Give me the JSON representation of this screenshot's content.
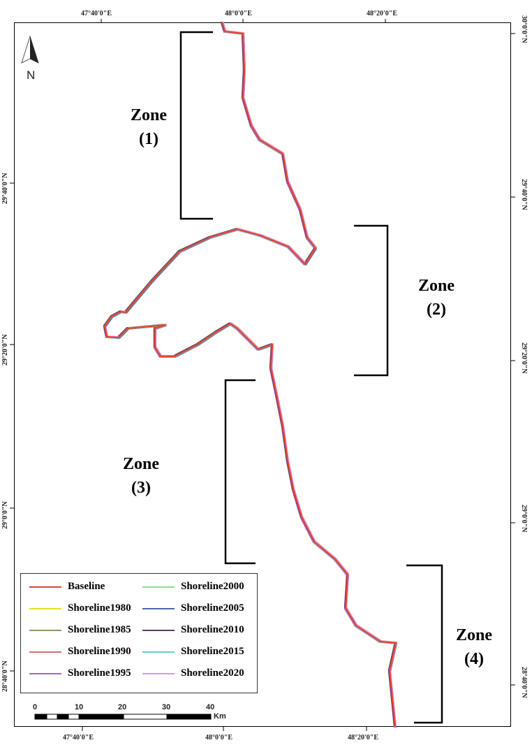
{
  "axes": {
    "top": [
      "47°40'0\"E",
      "48°0'0\"E",
      "48°20'0\"E"
    ],
    "bottom": [
      "47°40'0\"E",
      "48°0'0\"E",
      "48°20'0\"E"
    ],
    "right": [
      "30°0'0\"N",
      "29°40'0\"N",
      "29°20'0\"N",
      "29°0'0\"N",
      "28°40'0\"N"
    ],
    "left": [
      "29°40'0\"N",
      "29°20'0\"N",
      "29°0'0\"N",
      "28°40'0\"N"
    ]
  },
  "north_arrow": {
    "label": "N"
  },
  "zones": [
    {
      "line1": "Zone",
      "line2": "(1)"
    },
    {
      "line1": "Zone",
      "line2": "(2)"
    },
    {
      "line1": "Zone",
      "line2": "(3)"
    },
    {
      "line1": "Zone",
      "line2": "(4)"
    }
  ],
  "legend": [
    {
      "label": "Baseline",
      "color": "#e0452f"
    },
    {
      "label": "Shoreline1980",
      "color": "#e8e020"
    },
    {
      "label": "Shoreline1985",
      "color": "#8a9a6a"
    },
    {
      "label": "Shoreline1990",
      "color": "#d07070"
    },
    {
      "label": "Shoreline1995",
      "color": "#9a6ad0"
    },
    {
      "label": "Shoreline2000",
      "color": "#8ee08e"
    },
    {
      "label": "Shoreline2005",
      "color": "#4a6aa8"
    },
    {
      "label": "Shoreline2010",
      "color": "#5a3a6a"
    },
    {
      "label": "Shoreline2015",
      "color": "#60d0d0"
    },
    {
      "label": "Shoreline2020",
      "color": "#f090d8"
    }
  ],
  "scalebar": {
    "ticks": [
      "0",
      "10",
      "20",
      "30",
      "40"
    ],
    "unit": "Km"
  }
}
